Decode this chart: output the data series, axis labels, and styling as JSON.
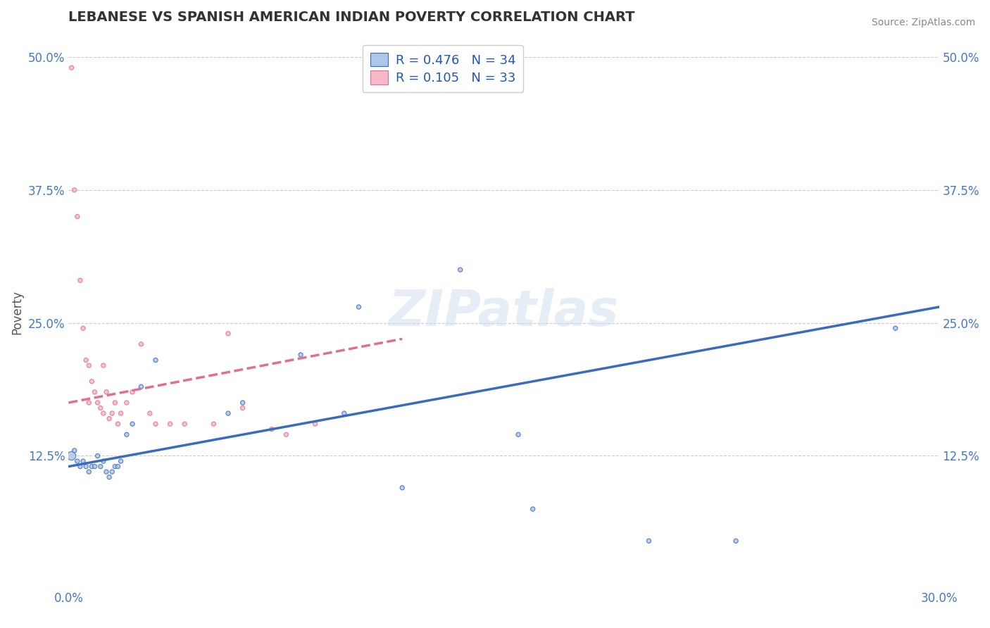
{
  "title": "LEBANESE VS SPANISH AMERICAN INDIAN POVERTY CORRELATION CHART",
  "source": "Source: ZipAtlas.com",
  "ylabel": "Poverty",
  "xlim": [
    0.0,
    0.3
  ],
  "ylim": [
    0.0,
    0.52
  ],
  "xtick_labels": [
    "0.0%",
    "30.0%"
  ],
  "ytick_labels": [
    "",
    "12.5%",
    "25.0%",
    "37.5%",
    "50.0%"
  ],
  "yticks": [
    0.0,
    0.125,
    0.25,
    0.375,
    0.5
  ],
  "lebanese_R": 0.476,
  "lebanese_N": 34,
  "spanish_R": 0.105,
  "spanish_N": 33,
  "lebanese_color": "#aec6e8",
  "lebanese_line_color": "#3a6bbf",
  "spanish_color": "#f5b8c8",
  "spanish_line_color": "#e07090",
  "background_color": "#ffffff",
  "grid_color": "#cccccc",
  "title_color": "#333333",
  "axis_label_color": "#4477cc",
  "legend_text_color": "#2255bb",
  "lebanese_x": [
    0.001,
    0.002,
    0.003,
    0.004,
    0.005,
    0.006,
    0.007,
    0.008,
    0.009,
    0.01,
    0.011,
    0.012,
    0.013,
    0.014,
    0.015,
    0.016,
    0.017,
    0.018,
    0.02,
    0.022,
    0.025,
    0.03,
    0.055,
    0.06,
    0.08,
    0.095,
    0.1,
    0.115,
    0.135,
    0.155,
    0.16,
    0.2,
    0.23,
    0.285
  ],
  "lebanese_y": [
    0.125,
    0.13,
    0.12,
    0.115,
    0.12,
    0.115,
    0.11,
    0.115,
    0.115,
    0.125,
    0.115,
    0.12,
    0.11,
    0.105,
    0.11,
    0.115,
    0.115,
    0.12,
    0.145,
    0.155,
    0.19,
    0.215,
    0.165,
    0.175,
    0.22,
    0.165,
    0.265,
    0.095,
    0.3,
    0.145,
    0.075,
    0.045,
    0.045,
    0.245
  ],
  "lebanese_sizes": [
    80,
    20,
    20,
    20,
    20,
    20,
    20,
    20,
    20,
    20,
    20,
    20,
    20,
    20,
    20,
    20,
    20,
    20,
    20,
    20,
    20,
    20,
    20,
    20,
    20,
    20,
    20,
    20,
    20,
    20,
    20,
    20,
    20,
    20
  ],
  "spanish_x": [
    0.001,
    0.002,
    0.003,
    0.004,
    0.005,
    0.006,
    0.007,
    0.007,
    0.008,
    0.009,
    0.01,
    0.011,
    0.012,
    0.012,
    0.013,
    0.014,
    0.015,
    0.016,
    0.017,
    0.018,
    0.02,
    0.022,
    0.025,
    0.028,
    0.03,
    0.035,
    0.04,
    0.05,
    0.055,
    0.06,
    0.07,
    0.075,
    0.085
  ],
  "spanish_y": [
    0.49,
    0.375,
    0.35,
    0.29,
    0.245,
    0.215,
    0.21,
    0.175,
    0.195,
    0.185,
    0.175,
    0.17,
    0.165,
    0.21,
    0.185,
    0.16,
    0.165,
    0.175,
    0.155,
    0.165,
    0.175,
    0.185,
    0.23,
    0.165,
    0.155,
    0.155,
    0.155,
    0.155,
    0.24,
    0.17,
    0.15,
    0.145,
    0.155
  ],
  "spanish_sizes": [
    20,
    20,
    20,
    20,
    20,
    20,
    20,
    20,
    20,
    20,
    20,
    20,
    20,
    20,
    20,
    20,
    20,
    20,
    20,
    20,
    20,
    20,
    20,
    20,
    20,
    20,
    20,
    20,
    20,
    20,
    20,
    20,
    20
  ],
  "leb_line_x": [
    0.0,
    0.3
  ],
  "leb_line_y": [
    0.115,
    0.265
  ],
  "span_line_x": [
    0.0,
    0.115
  ],
  "span_line_y": [
    0.175,
    0.235
  ]
}
